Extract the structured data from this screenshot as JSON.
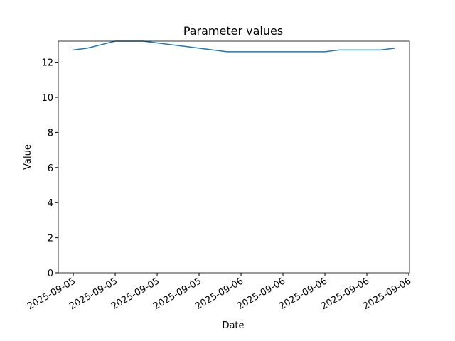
{
  "chart_data": {
    "type": "line",
    "title": "Parameter values",
    "xlabel": "Date",
    "ylabel": "Value",
    "x": [
      0,
      1,
      2,
      3,
      4,
      5,
      6,
      7,
      8,
      9,
      10,
      11,
      12,
      13,
      14,
      15,
      16,
      17,
      18,
      19,
      20,
      21,
      22,
      23
    ],
    "series": [
      {
        "name": "Value",
        "color": "#1f77b4",
        "values": [
          12.7,
          12.8,
          13.0,
          13.2,
          13.2,
          13.2,
          13.1,
          13.0,
          12.9,
          12.8,
          12.7,
          12.6,
          12.6,
          12.6,
          12.6,
          12.6,
          12.6,
          12.6,
          12.6,
          12.7,
          12.7,
          12.7,
          12.7,
          12.8
        ]
      }
    ],
    "xlim": [
      -1.07,
      24.05
    ],
    "xticks": [
      {
        "value": 0,
        "label": "2025-09-05"
      },
      {
        "value": 3,
        "label": "2025-09-05"
      },
      {
        "value": 6,
        "label": "2025-09-05"
      },
      {
        "value": 9,
        "label": "2025-09-05"
      },
      {
        "value": 12,
        "label": "2025-09-06"
      },
      {
        "value": 15,
        "label": "2025-09-06"
      },
      {
        "value": 18,
        "label": "2025-09-06"
      },
      {
        "value": 21,
        "label": "2025-09-06"
      },
      {
        "value": 24,
        "label": "2025-09-06"
      }
    ],
    "ylim": [
      0,
      13.2
    ],
    "yticks": [
      0,
      2,
      4,
      6,
      8,
      10,
      12
    ],
    "grid": false
  }
}
